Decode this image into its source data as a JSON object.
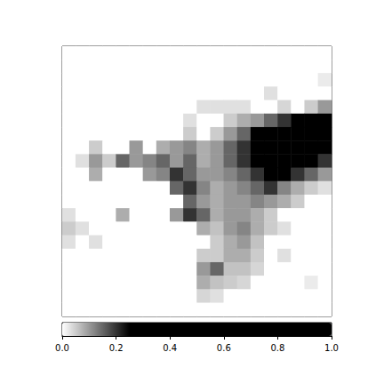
{
  "chart_data": {
    "type": "heatmap",
    "tick_labels": false,
    "cells": [
      [
        0,
        0,
        0,
        0,
        0,
        0,
        0,
        0,
        0,
        0,
        0,
        0,
        0,
        0,
        0,
        0,
        0,
        0,
        0,
        0
      ],
      [
        0,
        0,
        0,
        0,
        0,
        0,
        0,
        0,
        0,
        0,
        0,
        0,
        0,
        0,
        0,
        0,
        0,
        0,
        0,
        0
      ],
      [
        0,
        0,
        0,
        0,
        0,
        0,
        0,
        0,
        0,
        0,
        0,
        0,
        0,
        0,
        0,
        0,
        0,
        0,
        0,
        0.02
      ],
      [
        0,
        0,
        0,
        0,
        0,
        0,
        0,
        0,
        0,
        0,
        0,
        0,
        0,
        0,
        0,
        0.03,
        0,
        0,
        0,
        0
      ],
      [
        0,
        0,
        0,
        0,
        0,
        0,
        0,
        0,
        0,
        0,
        0.03,
        0.03,
        0.03,
        0.03,
        0,
        0,
        0.04,
        0,
        0.05,
        0.1
      ],
      [
        0,
        0,
        0,
        0,
        0,
        0,
        0,
        0,
        0,
        0.03,
        0,
        0,
        0.05,
        0.08,
        0.1,
        0.15,
        0.2,
        0.25,
        0.3,
        0.5
      ],
      [
        0,
        0,
        0,
        0,
        0,
        0,
        0,
        0,
        0,
        0.05,
        0,
        0.05,
        0.1,
        0.15,
        0.3,
        0.6,
        0.5,
        0.45,
        0.4,
        0.6
      ],
      [
        0,
        0,
        0.05,
        0,
        0,
        0.1,
        0,
        0.08,
        0.1,
        0.12,
        0.08,
        0.1,
        0.15,
        0.2,
        0.5,
        0.7,
        0.55,
        0.6,
        0.5,
        0.4
      ],
      [
        0,
        0.03,
        0.1,
        0.05,
        0.15,
        0.1,
        0.12,
        0.15,
        0.1,
        0.15,
        0.08,
        0.1,
        0.15,
        0.2,
        0.3,
        0.35,
        0.5,
        0.45,
        0.35,
        0.2
      ],
      [
        0,
        0,
        0.08,
        0,
        0,
        0,
        0.1,
        0.12,
        0.2,
        0.15,
        0.1,
        0.1,
        0.12,
        0.15,
        0.2,
        0.25,
        0.3,
        0.2,
        0.15,
        0.1
      ],
      [
        0,
        0,
        0,
        0,
        0,
        0,
        0,
        0,
        0.15,
        0.2,
        0.12,
        0.08,
        0.1,
        0.12,
        0.15,
        0.2,
        0.12,
        0.08,
        0.05,
        0.03
      ],
      [
        0,
        0,
        0,
        0,
        0,
        0,
        0,
        0,
        0,
        0.15,
        0.1,
        0.08,
        0.1,
        0.1,
        0.12,
        0.1,
        0.08,
        0.05,
        0,
        0
      ],
      [
        0.03,
        0,
        0,
        0,
        0.08,
        0,
        0,
        0,
        0.1,
        0.2,
        0.15,
        0.08,
        0.1,
        0.1,
        0.08,
        0.05,
        0,
        0,
        0,
        0
      ],
      [
        0.05,
        0.03,
        0,
        0,
        0,
        0,
        0,
        0,
        0,
        0,
        0.08,
        0.06,
        0.1,
        0.12,
        0.08,
        0.05,
        0.03,
        0,
        0,
        0
      ],
      [
        0.03,
        0,
        0.03,
        0,
        0,
        0,
        0,
        0,
        0,
        0,
        0,
        0.05,
        0.08,
        0.1,
        0.06,
        0,
        0,
        0,
        0,
        0
      ],
      [
        0,
        0,
        0,
        0,
        0,
        0,
        0,
        0,
        0,
        0,
        0.05,
        0.05,
        0.08,
        0.08,
        0.05,
        0,
        0.03,
        0,
        0,
        0
      ],
      [
        0,
        0,
        0,
        0,
        0,
        0,
        0,
        0,
        0,
        0,
        0.1,
        0.15,
        0.06,
        0.06,
        0.04,
        0,
        0,
        0,
        0,
        0
      ],
      [
        0,
        0,
        0,
        0,
        0,
        0,
        0,
        0,
        0,
        0,
        0.08,
        0.06,
        0.05,
        0.04,
        0,
        0,
        0,
        0,
        0.02,
        0
      ],
      [
        0,
        0,
        0,
        0,
        0,
        0,
        0,
        0,
        0,
        0,
        0.04,
        0.03,
        0,
        0,
        0,
        0,
        0,
        0,
        0,
        0
      ],
      [
        0,
        0,
        0,
        0,
        0,
        0,
        0,
        0,
        0,
        0,
        0,
        0,
        0,
        0,
        0,
        0,
        0,
        0,
        0,
        0
      ]
    ],
    "colorbar": {
      "range": [
        0,
        1
      ],
      "ticks": [
        {
          "value": 0,
          "label": "0.0"
        },
        {
          "value": 0.2,
          "label": "0.2"
        },
        {
          "value": 0.4,
          "label": "0.4"
        },
        {
          "value": 0.6,
          "label": "0.6"
        },
        {
          "value": 0.8,
          "label": "0.8"
        },
        {
          "value": 1,
          "label": "1.0"
        }
      ]
    }
  }
}
